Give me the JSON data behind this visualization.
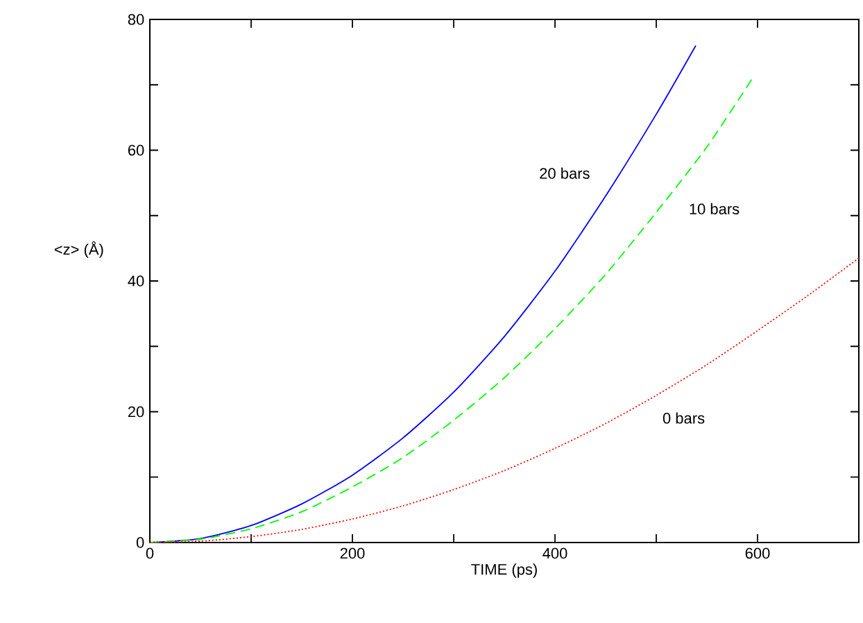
{
  "chart_data": {
    "type": "line",
    "xlabel": "TIME  (ps)",
    "ylabel": "<z>  (Å)",
    "xlim": [
      0,
      700
    ],
    "ylim": [
      0,
      80
    ],
    "xticks": [
      0,
      {
        "value": 100,
        "label": null
      },
      200,
      {
        "value": 300,
        "label": null
      },
      400,
      {
        "value": 500,
        "label": null
      },
      600
    ],
    "yticks": [
      0,
      {
        "value": 10,
        "label": null
      },
      20,
      {
        "value": 30,
        "label": null
      },
      40,
      {
        "value": 50,
        "label": null
      },
      60,
      {
        "value": 70,
        "label": null
      },
      80
    ],
    "series": [
      {
        "name": "20  bars",
        "color": "#0000ff",
        "line_style": "solid",
        "x": [
          0,
          50,
          100,
          150,
          200,
          250,
          300,
          350,
          400,
          450,
          500,
          539
        ],
        "values": [
          0,
          0.6,
          2.6,
          5.9,
          10.3,
          16,
          23,
          31.5,
          41.5,
          53,
          65.5,
          76
        ]
      },
      {
        "name": "10  bars",
        "color": "#00ff00",
        "line_style": "dashed",
        "x": [
          0,
          50,
          100,
          150,
          200,
          250,
          300,
          350,
          400,
          450,
          500,
          550,
          595
        ],
        "values": [
          0,
          0.5,
          2.1,
          4.7,
          8.5,
          13,
          18.7,
          25.2,
          32.7,
          41,
          50.5,
          60.5,
          71
        ]
      },
      {
        "name": "0  bars",
        "color": "#ff0000",
        "line_style": "dotted",
        "x": [
          0,
          50,
          100,
          150,
          200,
          250,
          300,
          350,
          400,
          450,
          500,
          550,
          600,
          650,
          700
        ],
        "values": [
          0,
          0.2,
          0.9,
          2,
          3.6,
          5.6,
          8.1,
          11,
          14.4,
          18.2,
          22.5,
          27.2,
          32.4,
          37.8,
          43.5
        ]
      }
    ]
  }
}
